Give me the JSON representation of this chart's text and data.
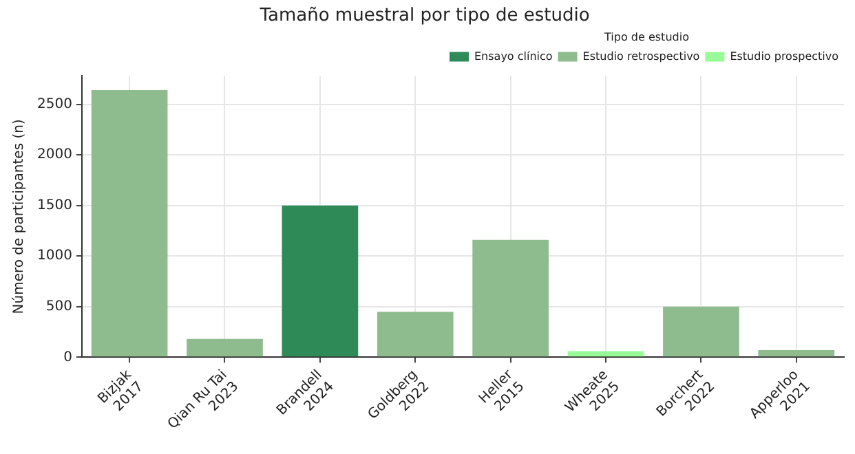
{
  "chart_data": {
    "type": "bar",
    "title": "Tamaño muestral por tipo de estudio",
    "ylabel": "Número de participantes (n)",
    "legend_title": "Tipo de estudio",
    "categories": [
      "Bizjak\n2017",
      "Qian Ru Tai\n2023",
      "Brandell\n2024",
      "Goldberg\n2022",
      "Heller\n2015",
      "Wheate\n2025",
      "Borchert\n2022",
      "Apperloo\n2021"
    ],
    "series": [
      {
        "name": "Ensayo clínico",
        "color": "#2e8b57",
        "values": [
          null,
          null,
          1500,
          null,
          null,
          null,
          null,
          null
        ]
      },
      {
        "name": "Estudio retrospectivo",
        "color": "#8fbc8f",
        "values": [
          2640,
          180,
          null,
          450,
          1160,
          null,
          500,
          70
        ]
      },
      {
        "name": "Estudio prospectivo",
        "color": "#98fb98",
        "values": [
          null,
          null,
          null,
          null,
          null,
          60,
          null,
          null
        ]
      }
    ],
    "ylim": [
      0,
      2780
    ],
    "yticks": [
      0,
      500,
      1000,
      1500,
      2000,
      2500
    ],
    "grid": true,
    "legend": "top right"
  }
}
